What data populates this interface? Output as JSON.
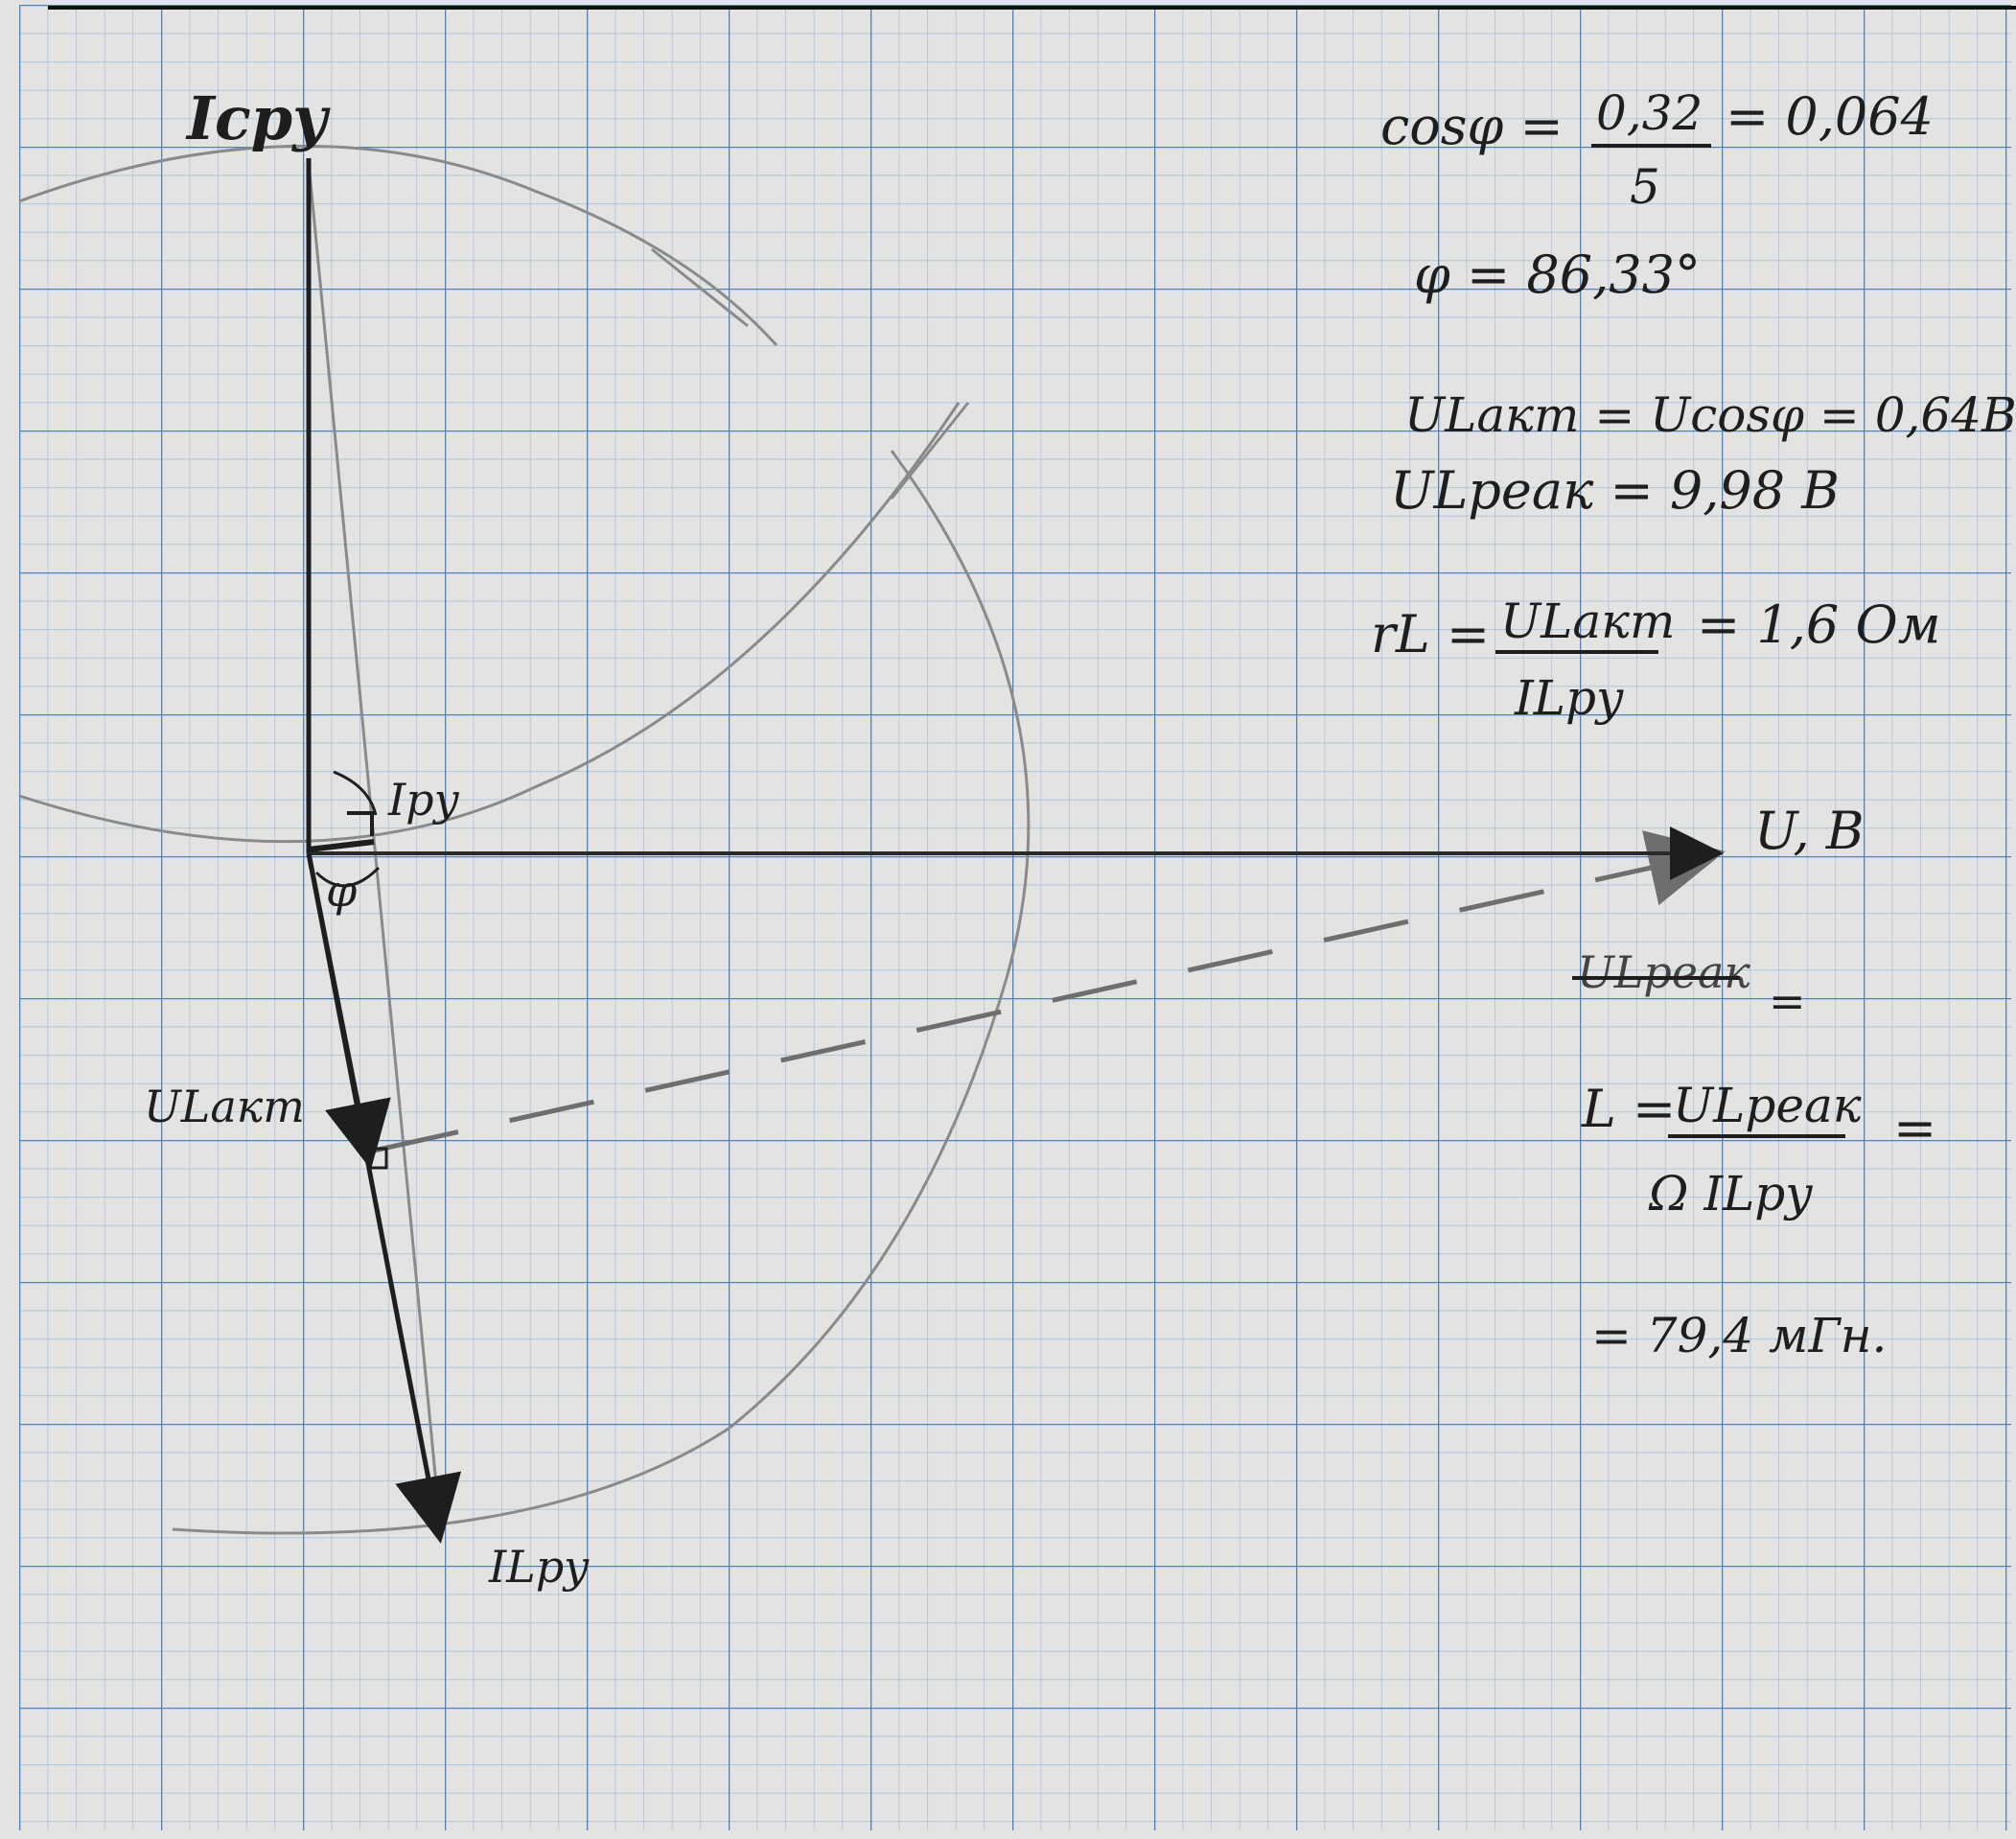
{
  "diagram": {
    "labels": {
      "y_axis": "Icру",
      "x_axis": "U, В",
      "i_ru": "Iру",
      "phi": "φ",
      "u_akt": "ULакт",
      "i_lru": "ILру"
    },
    "calculations": {
      "cos_lhs": "cosφ =",
      "cos_num": "0,32",
      "cos_den": "5",
      "cos_result": "= 0,064",
      "phi": "φ = 86,33°",
      "u_akt": "ULакт = Ucosφ = 0,64В",
      "u_reak": "ULреак = 9,98 В",
      "r_lhs": "rL =",
      "r_num": "ULакт",
      "r_den": "ILру",
      "r_result": "= 1,6 Ом",
      "struck": "ULреак",
      "struck_eq": "=",
      "l_lhs": "L =",
      "l_num": "ULреак",
      "l_den": "Ω ILру",
      "l_eq": "=",
      "l_result": "= 79,4 мГн."
    },
    "colors": {
      "paper": "#e3e4e2",
      "grid_minor": "#8fb1d6",
      "grid_major": "#4f82c2",
      "ink": "#1e1e1e",
      "pencil": "#8a8a8a"
    }
  }
}
